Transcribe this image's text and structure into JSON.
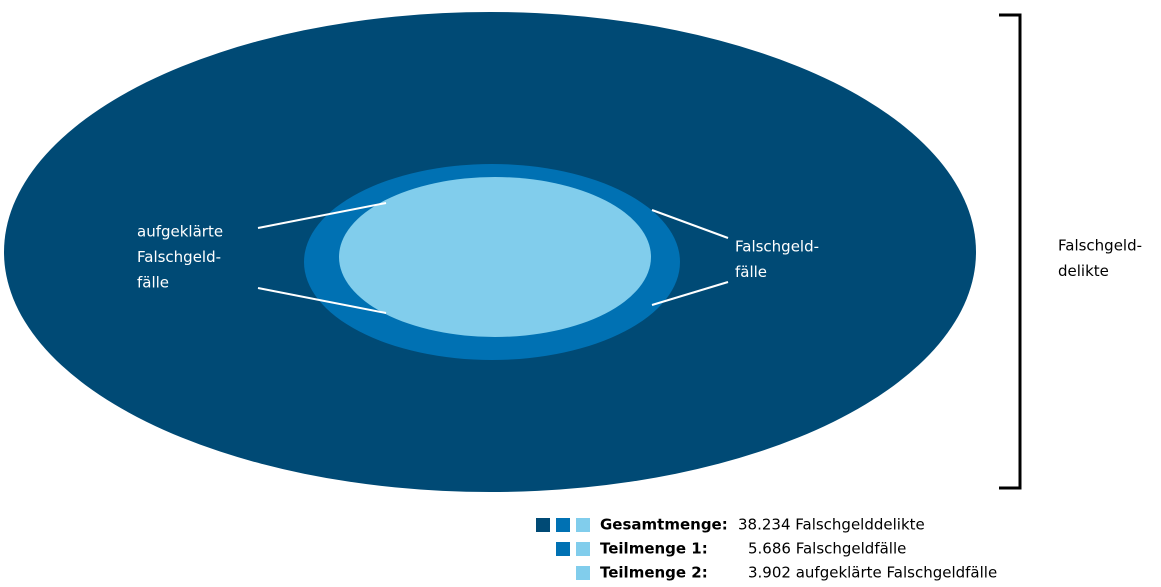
{
  "diagram": {
    "inner_label": [
      "aufgeklärte",
      "Falschgeld-",
      "fälle"
    ],
    "middle_label": [
      "Falschgeld-",
      "fälle"
    ],
    "outer_label": [
      "Falschgeld-",
      "delikte"
    ],
    "legend": [
      {
        "label": "Gesamtmenge:",
        "text": "38.234 Falschgelddelikte"
      },
      {
        "label": "Teilmenge 1:",
        "text": "5.686 Falschgeldfälle"
      },
      {
        "label": "Teilmenge 2:",
        "text": "3.902 aufgeklärte Falschgeldfälle"
      }
    ]
  }
}
